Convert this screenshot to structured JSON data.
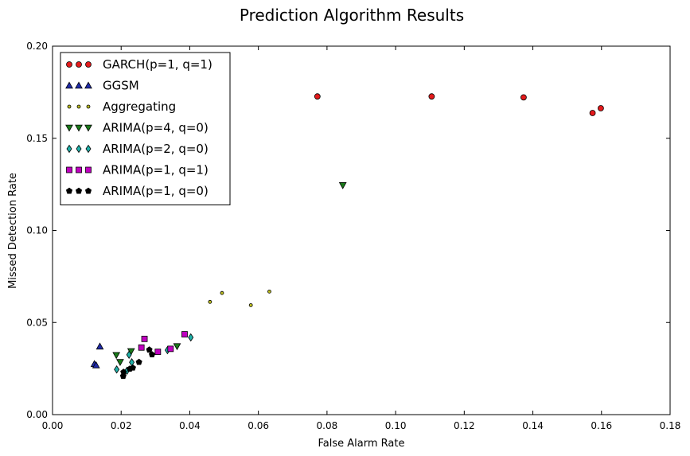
{
  "chart_data": {
    "type": "scatter",
    "title": "Prediction Algorithm Results",
    "xlabel": "False Alarm Rate",
    "ylabel": "Missed Detection Rate",
    "xlim": [
      0.0,
      0.18
    ],
    "ylim": [
      0.0,
      0.2
    ],
    "xticks": [
      "0.00",
      "0.02",
      "0.04",
      "0.06",
      "0.08",
      "0.10",
      "0.12",
      "0.14",
      "0.16",
      "0.18"
    ],
    "yticks": [
      "0.00",
      "0.05",
      "0.10",
      "0.15",
      "0.20"
    ],
    "grid": false,
    "legend_position": "top-left",
    "series": [
      {
        "name": "GARCH(p=1, q=1)",
        "marker": "circle",
        "color": "#e31a1c",
        "points": [
          [
            0.0772,
            0.1727
          ],
          [
            0.1105,
            0.1727
          ],
          [
            0.1373,
            0.1722
          ],
          [
            0.1574,
            0.1637
          ],
          [
            0.1598,
            0.1663
          ]
        ]
      },
      {
        "name": "GGSM",
        "marker": "triangle-up",
        "color": "#1f2aa8",
        "points": [
          [
            0.0122,
            0.0275
          ],
          [
            0.0127,
            0.0268
          ],
          [
            0.0138,
            0.037
          ]
        ]
      },
      {
        "name": "Aggregating",
        "marker": "small-circle",
        "color": "#bcbd22",
        "points": [
          [
            0.0459,
            0.0612
          ],
          [
            0.0494,
            0.066
          ],
          [
            0.0578,
            0.0594
          ],
          [
            0.0632,
            0.0668
          ]
        ]
      },
      {
        "name": "ARIMA(p=4, q=0)",
        "marker": "triangle-down",
        "color": "#1a7a1a",
        "points": [
          [
            0.0846,
            0.1245
          ],
          [
            0.0186,
            0.0323
          ],
          [
            0.0197,
            0.0285
          ],
          [
            0.0229,
            0.0344
          ],
          [
            0.0363,
            0.0371
          ]
        ]
      },
      {
        "name": "ARIMA(p=2, q=0)",
        "marker": "diamond",
        "color": "#20b2aa",
        "points": [
          [
            0.0187,
            0.0245
          ],
          [
            0.0217,
            0.0238
          ],
          [
            0.0223,
            0.0325
          ],
          [
            0.0231,
            0.0284
          ],
          [
            0.0335,
            0.035
          ],
          [
            0.0403,
            0.0419
          ]
        ]
      },
      {
        "name": "ARIMA(p=1, q=1)",
        "marker": "square",
        "color": "#c000c0",
        "points": [
          [
            0.0268,
            0.0411
          ],
          [
            0.0259,
            0.0364
          ],
          [
            0.0307,
            0.0341
          ],
          [
            0.0344,
            0.0357
          ],
          [
            0.0385,
            0.0436
          ]
        ]
      },
      {
        "name": "ARIMA(p=1, q=0)",
        "marker": "pentagon",
        "color": "#000000",
        "points": [
          [
            0.0206,
            0.0209
          ],
          [
            0.0207,
            0.0231
          ],
          [
            0.0225,
            0.0248
          ],
          [
            0.0234,
            0.0254
          ],
          [
            0.0252,
            0.0285
          ],
          [
            0.0282,
            0.0352
          ],
          [
            0.029,
            0.0326
          ]
        ]
      }
    ]
  }
}
